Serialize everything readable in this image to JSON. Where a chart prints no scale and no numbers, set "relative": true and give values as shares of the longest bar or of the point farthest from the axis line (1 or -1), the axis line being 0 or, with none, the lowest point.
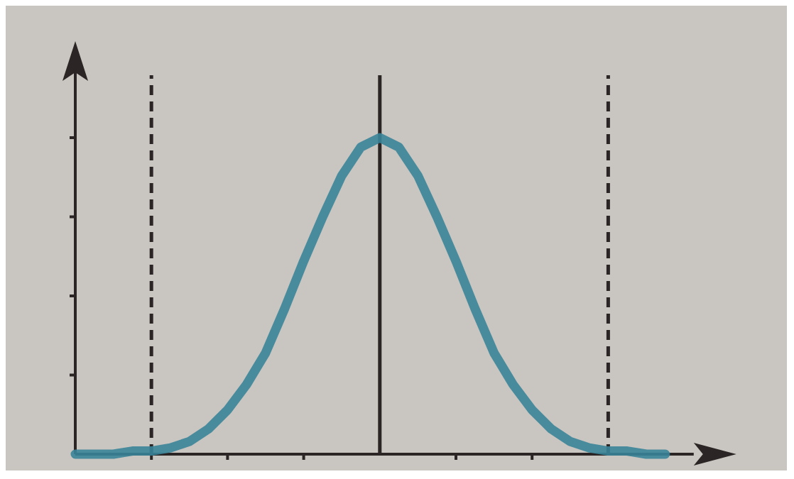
{
  "chart_data": {
    "type": "line",
    "relative": true,
    "line_style": "solid",
    "categories": [
      null,
      null,
      null,
      null,
      null,
      null,
      null,
      null,
      null,
      null,
      null,
      null,
      null,
      null,
      null,
      null,
      null,
      null,
      null,
      null,
      null,
      null,
      null,
      null,
      null,
      null,
      null,
      null,
      null,
      null,
      null,
      null
    ],
    "series": [
      {
        "color": "#3a8499",
        "values": [
          0,
          0,
          0,
          0.01,
          0.01,
          0.02,
          0.04,
          0.08,
          0.14,
          0.22,
          0.32,
          0.46,
          0.61,
          0.75,
          0.88,
          0.97,
          1,
          0.97,
          0.88,
          0.75,
          0.61,
          0.46,
          0.32,
          0.22,
          0.14,
          0.08,
          0.04,
          0.02,
          0.01,
          0.01,
          0,
          0
        ]
      }
    ]
  }
}
